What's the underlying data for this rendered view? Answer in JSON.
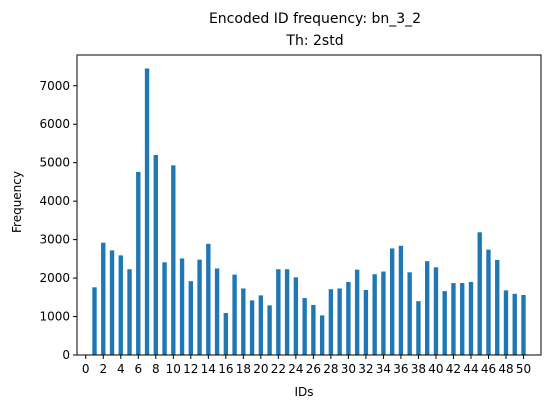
{
  "chart_data": {
    "type": "bar",
    "title": "Encoded ID frequency: bn_3_2",
    "subtitle": "Th: 2std",
    "xlabel": "IDs",
    "ylabel": "Frequency",
    "bar_color": "#1f77b4",
    "xlim": [
      -1,
      52
    ],
    "ylim": [
      0,
      7800
    ],
    "grid": false,
    "x_ticks": [
      0,
      2,
      4,
      6,
      8,
      10,
      12,
      14,
      16,
      18,
      20,
      22,
      24,
      26,
      28,
      30,
      32,
      34,
      36,
      38,
      40,
      42,
      44,
      46,
      48,
      50
    ],
    "y_ticks": [
      0,
      1000,
      2000,
      3000,
      4000,
      5000,
      6000,
      7000
    ],
    "categories": [
      1,
      2,
      3,
      4,
      5,
      6,
      7,
      8,
      9,
      10,
      11,
      12,
      13,
      14,
      15,
      16,
      17,
      18,
      19,
      20,
      21,
      22,
      23,
      24,
      25,
      26,
      27,
      28,
      29,
      30,
      31,
      32,
      33,
      34,
      35,
      36,
      37,
      38,
      39,
      40,
      41,
      42,
      43,
      44,
      45,
      46,
      47,
      48,
      49,
      50
    ],
    "values": [
      1760,
      2920,
      2720,
      2590,
      2230,
      4760,
      7450,
      5200,
      2410,
      4930,
      2510,
      1920,
      2480,
      2890,
      2250,
      1090,
      2090,
      1730,
      1420,
      1550,
      1290,
      2230,
      2230,
      2020,
      1480,
      1300,
      1030,
      1710,
      1730,
      1900,
      2220,
      1690,
      2100,
      2170,
      2770,
      2840,
      2150,
      1400,
      2440,
      2280,
      1660,
      1870,
      1870,
      1900,
      3190,
      2740,
      2470,
      1680,
      1590,
      1560
    ]
  }
}
